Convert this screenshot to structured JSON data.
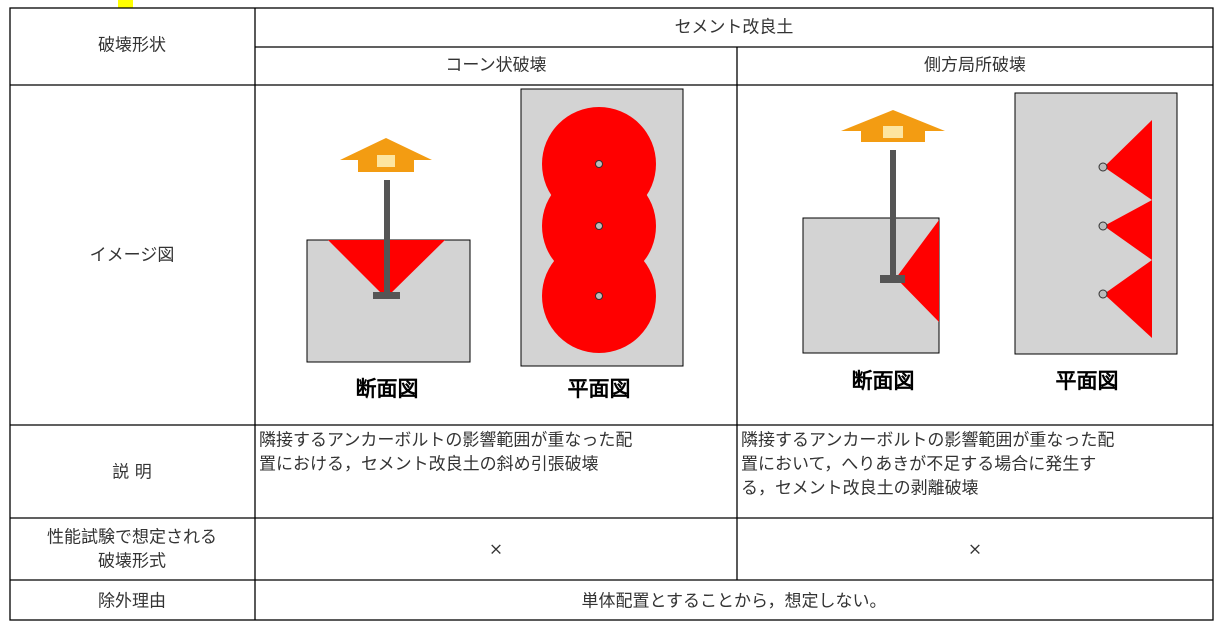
{
  "table": {
    "header": {
      "label": "破壊形状",
      "group": "セメント改良土",
      "columns": [
        "コーン状破壊",
        "側方局所破壊"
      ]
    },
    "image_row": {
      "label": "イメージ図",
      "captions": [
        [
          "断面図",
          "平面図"
        ],
        [
          "断面図",
          "平面図"
        ]
      ]
    },
    "description_row": {
      "label": "説 明",
      "cells": [
        [
          "隣接するアンカーボルトの影響範囲が重なった配",
          "置における，セメント改良土の斜め引張破壊"
        ],
        [
          "隣接するアンカーボルトの影響範囲が重なった配",
          "置において，へりあきが不足する場合に発生す",
          "る，セメント改良土の剥離破壊"
        ]
      ]
    },
    "performance_row": {
      "label": [
        "性能試験で想定される",
        "破壊形式"
      ],
      "cells": [
        "×",
        "×"
      ]
    },
    "exclusion_row": {
      "label": "除外理由",
      "cell": "単体配置とすることから，想定しない。"
    }
  }
}
